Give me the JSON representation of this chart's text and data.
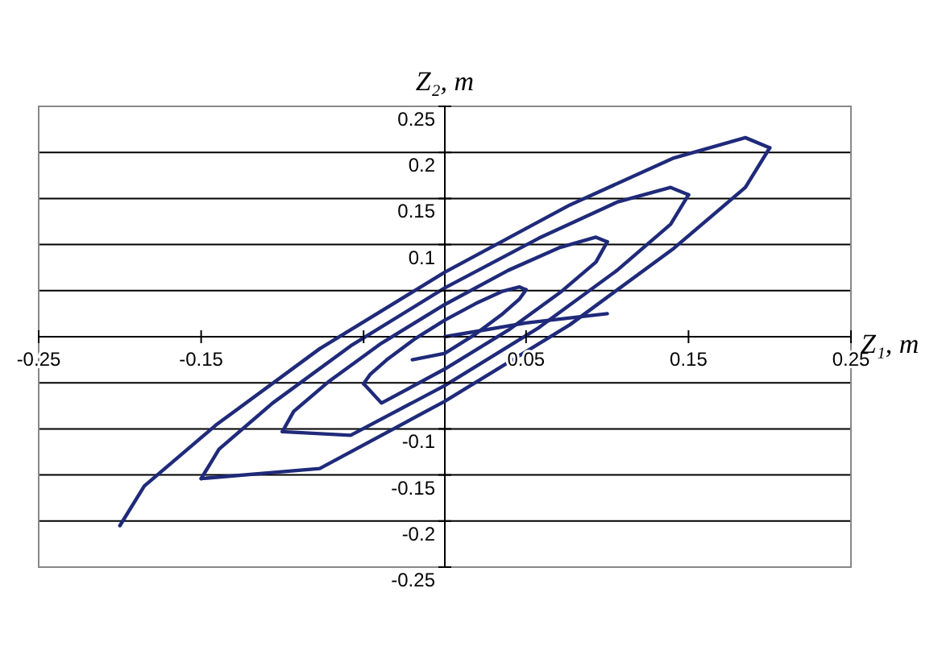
{
  "chart_data": {
    "type": "line",
    "xlabel": "Z₁, m",
    "ylabel": "Z₂, m",
    "xlim": [
      -0.25,
      0.25
    ],
    "ylim": [
      -0.25,
      0.25
    ],
    "xticks": [
      -0.25,
      -0.15,
      {
        "value": -0.05,
        "label": null
      },
      0.05,
      0.15,
      0.25
    ],
    "yticks": [
      -0.25,
      -0.2,
      -0.15,
      -0.1,
      {
        "value": -0.05,
        "label": null
      },
      {
        "value": 0,
        "label": null
      },
      {
        "value": 0.05,
        "label": null
      },
      0.1,
      0.15,
      0.2,
      0.25
    ],
    "grid": "y",
    "marker": "none",
    "line_style": "solid",
    "series": [
      {
        "color": "#1f2a7a",
        "x": [
          -0.2,
          -0.185,
          -0.141,
          -0.077,
          0,
          0.077,
          0.141,
          0.185,
          0.2
        ],
        "values": [
          -0.205,
          -0.162,
          -0.096,
          -0.013,
          0.07,
          0.143,
          0.194,
          0.216,
          0.205
        ]
      },
      {
        "color": "#1f2a7a",
        "x": [
          -0.15,
          -0.077,
          0,
          0.077,
          0.141,
          0.185,
          0.2
        ],
        "values": [
          -0.154,
          -0.143,
          -0.07,
          0.013,
          0.096,
          0.162,
          0.205
        ]
      },
      {
        "color": "#1f2a7a",
        "x": [
          -0.15,
          -0.139,
          -0.106,
          -0.058,
          0,
          0.058,
          0.106,
          0.139,
          0.15
        ],
        "values": [
          -0.154,
          -0.122,
          -0.072,
          -0.01,
          0.053,
          0.107,
          0.146,
          0.162,
          0.154
        ]
      },
      {
        "color": "#1f2a7a",
        "x": [
          -0.1,
          -0.058,
          0,
          0.058,
          0.106,
          0.139,
          0.15
        ],
        "values": [
          -0.103,
          -0.107,
          -0.053,
          0.01,
          0.072,
          0.122,
          0.154
        ]
      },
      {
        "color": "#1f2a7a",
        "x": [
          -0.1,
          -0.093,
          -0.071,
          -0.039,
          0,
          0.039,
          0.071,
          0.093,
          0.1
        ],
        "values": [
          -0.103,
          -0.081,
          -0.048,
          -0.007,
          0.035,
          0.072,
          0.097,
          0.108,
          0.103
        ]
      },
      {
        "color": "#1f2a7a",
        "x": [
          -0.05,
          -0.039,
          0,
          0.039,
          0.071,
          0.093,
          0.1
        ],
        "values": [
          -0.051,
          -0.072,
          -0.035,
          0.007,
          0.048,
          0.081,
          0.103
        ]
      },
      {
        "color": "#1f2a7a",
        "x": [
          -0.05,
          -0.046,
          -0.035,
          -0.019,
          0,
          0.019,
          0.035,
          0.046,
          0.05
        ],
        "values": [
          -0.051,
          -0.041,
          -0.024,
          -0.003,
          0.018,
          0.036,
          0.049,
          0.054,
          0.051
        ]
      },
      {
        "color": "#1f2a7a",
        "x": [
          -0.02,
          0,
          0.019,
          0.035,
          0.046,
          0.05
        ],
        "values": [
          -0.025,
          -0.018,
          0.003,
          0.024,
          0.041,
          0.051
        ]
      },
      {
        "color": "#1f2a7a",
        "x": [
          0,
          0.05,
          0.1
        ],
        "values": [
          0,
          0.015,
          0.025
        ]
      }
    ]
  }
}
